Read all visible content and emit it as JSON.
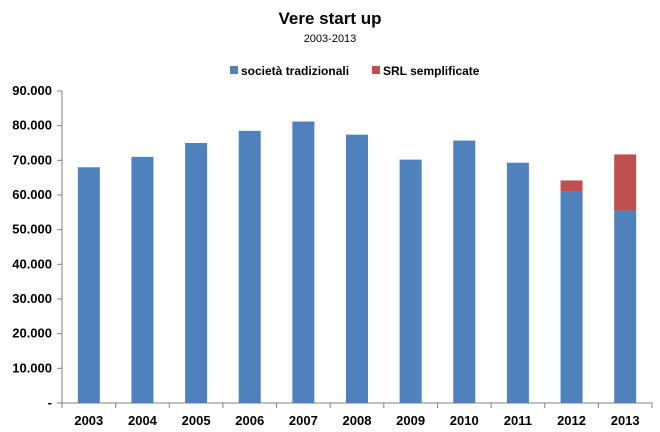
{
  "chart_data": {
    "type": "bar",
    "stacked": true,
    "title": "Vere start up",
    "subtitle": "2003-2013",
    "categories": [
      "2003",
      "2004",
      "2005",
      "2006",
      "2007",
      "2008",
      "2009",
      "2010",
      "2011",
      "2012",
      "2013"
    ],
    "series": [
      {
        "name": "società tradizionali",
        "color": "#4F81BD",
        "values": [
          68000,
          71000,
          75000,
          78500,
          81200,
          77400,
          70200,
          75700,
          69300,
          60900,
          55500
        ]
      },
      {
        "name": "SRL semplificate",
        "color": "#C0504D",
        "values": [
          0,
          0,
          0,
          0,
          0,
          0,
          0,
          0,
          0,
          3300,
          16200
        ]
      }
    ],
    "ylim": [
      0,
      90000
    ],
    "yticks": [
      0,
      10000,
      20000,
      30000,
      40000,
      50000,
      60000,
      70000,
      80000,
      90000
    ],
    "ytick_labels": [
      "-",
      "10.000",
      "20.000",
      "30.000",
      "40.000",
      "50.000",
      "60.000",
      "70.000",
      "80.000",
      "90.000"
    ],
    "grid": false,
    "legend": "top-center"
  }
}
